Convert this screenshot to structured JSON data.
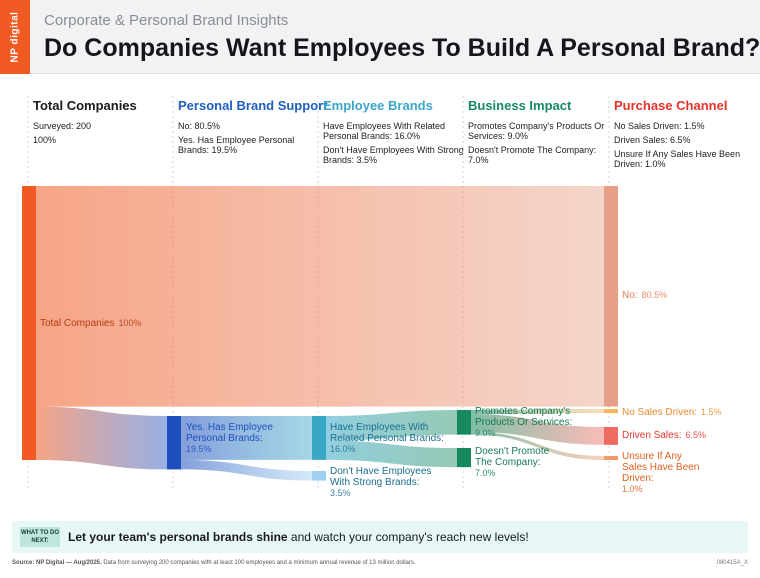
{
  "header": {
    "logo": "NP digital",
    "subtitle": "Corporate & Personal Brand Insights",
    "title": "Do Companies Want Employees To Build A Personal Brand?"
  },
  "columns": [
    {
      "title": "Total Companies",
      "color": "#1a1a1a",
      "lines": [
        "Surveyed: 200",
        "100%"
      ]
    },
    {
      "title": "Personal Brand Support",
      "color": "#1f5fbf",
      "lines": [
        "No: 80.5%",
        "Yes. Has Employee Personal Brands: 19.5%"
      ]
    },
    {
      "title": "Employee Brands",
      "color": "#3aa6c9",
      "lines": [
        "Have Employees With Related Personal Brands: 16.0%",
        "Don't Have Employees With Strong Brands: 3.5%"
      ]
    },
    {
      "title": "Business Impact",
      "color": "#168a5e",
      "lines": [
        "Promotes Company's Products Or Services: 9.0%",
        "Doesn't Promote The Company: 7.0%"
      ]
    },
    {
      "title": "Purchase Channel",
      "color": "#e8332a",
      "lines": [
        "No Sales Driven: 1.5%",
        "Driven Sales: 6.5%",
        "Unsure If Any Sales Have Been Driven: 1.0%"
      ]
    }
  ],
  "chart_data": {
    "type": "sankey",
    "total_surveyed": 200,
    "nodes": [
      {
        "id": "total",
        "label": "Total Companies",
        "value_label": "100%",
        "value": 100,
        "color": "#f15a22"
      },
      {
        "id": "no",
        "label": "No:",
        "value_label": "80.5%",
        "value": 80.5,
        "color": "#e7a088"
      },
      {
        "id": "yes",
        "label": "Yes. Has Employee Personal Brands:",
        "value_label": "19.5%",
        "value": 19.5,
        "color": "#1f4fbf"
      },
      {
        "id": "related",
        "label": "Have Employees With Related Personal Brands:",
        "value_label": "16.0%",
        "value": 16.0,
        "color": "#39a7c6"
      },
      {
        "id": "notstrong",
        "label": "Don't Have Employees With Strong Brands:",
        "value_label": "3.5%",
        "value": 3.5,
        "color": "#9fd0f2"
      },
      {
        "id": "promotes",
        "label": "Promotes Company's Products Or Services:",
        "value_label": "9.0%",
        "value": 9.0,
        "color": "#168a5e"
      },
      {
        "id": "notpromote",
        "label": "Doesn't Promote The Company:",
        "value_label": "7.0%",
        "value": 7.0,
        "color": "#168a5e"
      },
      {
        "id": "nosales",
        "label": "No Sales Driven:",
        "value_label": "1.5%",
        "value": 1.5,
        "color": "#f4b860"
      },
      {
        "id": "driven",
        "label": "Driven Sales:",
        "value_label": "6.5%",
        "value": 6.5,
        "color": "#ef6b60"
      },
      {
        "id": "unsure",
        "label": "Unsure If Any Sales Have Been Driven:",
        "value_label": "1.0%",
        "value": 1.0,
        "color": "#f39a6b"
      }
    ],
    "links": [
      {
        "source": "total",
        "target": "no",
        "value": 80.5
      },
      {
        "source": "total",
        "target": "yes",
        "value": 19.5
      },
      {
        "source": "yes",
        "target": "related",
        "value": 16.0
      },
      {
        "source": "yes",
        "target": "notstrong",
        "value": 3.5
      },
      {
        "source": "related",
        "target": "promotes",
        "value": 9.0
      },
      {
        "source": "related",
        "target": "notpromote",
        "value": 7.0
      },
      {
        "source": "promotes",
        "target": "nosales",
        "value": 1.5
      },
      {
        "source": "promotes",
        "target": "driven",
        "value": 6.5
      },
      {
        "source": "promotes",
        "target": "unsure",
        "value": 1.0
      }
    ]
  },
  "footer": {
    "what_to_do_next": "WHAT TO DO NEXT:",
    "cta_bold": "Let your team's personal brands shine",
    "cta_rest": " and watch your company's reach new levels!",
    "source_bold": "Source: NP Digital — Aug/2025.",
    "source_rest": " Data from surveying 200 companies with at least 100 employees and a minimum annual revenue of 13 million dollars.",
    "code": "080415A_X"
  }
}
